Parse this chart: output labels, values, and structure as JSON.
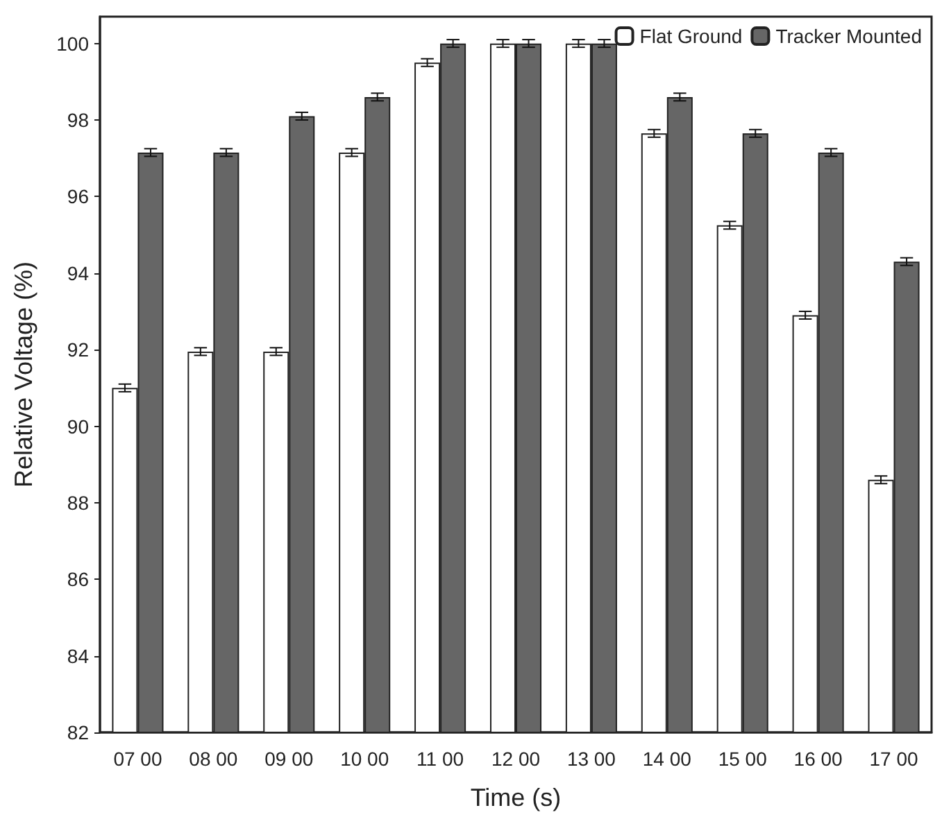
{
  "chart_data": {
    "type": "bar",
    "xlabel": "Time (s)",
    "ylabel": "Relative Voltage (%)",
    "categories": [
      "07 00",
      "08 00",
      "09 00",
      "10 00",
      "11 00",
      "12 00",
      "13 00",
      "14 00",
      "15 00",
      "16 00",
      "17 00"
    ],
    "series": [
      {
        "name": "Flat Ground",
        "color": "#ffffff",
        "values": [
          91.0,
          91.95,
          91.95,
          97.15,
          99.5,
          100,
          100,
          97.65,
          95.25,
          92.9,
          88.6
        ],
        "errors": [
          0.1,
          0.1,
          0.1,
          0.1,
          0.1,
          0.1,
          0.1,
          0.1,
          0.1,
          0.1,
          0.1
        ]
      },
      {
        "name": "Tracker Mounted",
        "color": "#666666",
        "values": [
          97.15,
          97.15,
          98.1,
          98.6,
          100,
          100,
          100,
          98.6,
          97.65,
          97.15,
          94.3
        ],
        "errors": [
          0.1,
          0.1,
          0.1,
          0.1,
          0.1,
          0.1,
          0.1,
          0.1,
          0.1,
          0.1,
          0.1
        ]
      }
    ],
    "ylim": [
      82,
      100.7
    ],
    "yticks": [
      82,
      84,
      86,
      88,
      90,
      92,
      94,
      96,
      98,
      100
    ],
    "grid": false,
    "legend": "top right"
  }
}
